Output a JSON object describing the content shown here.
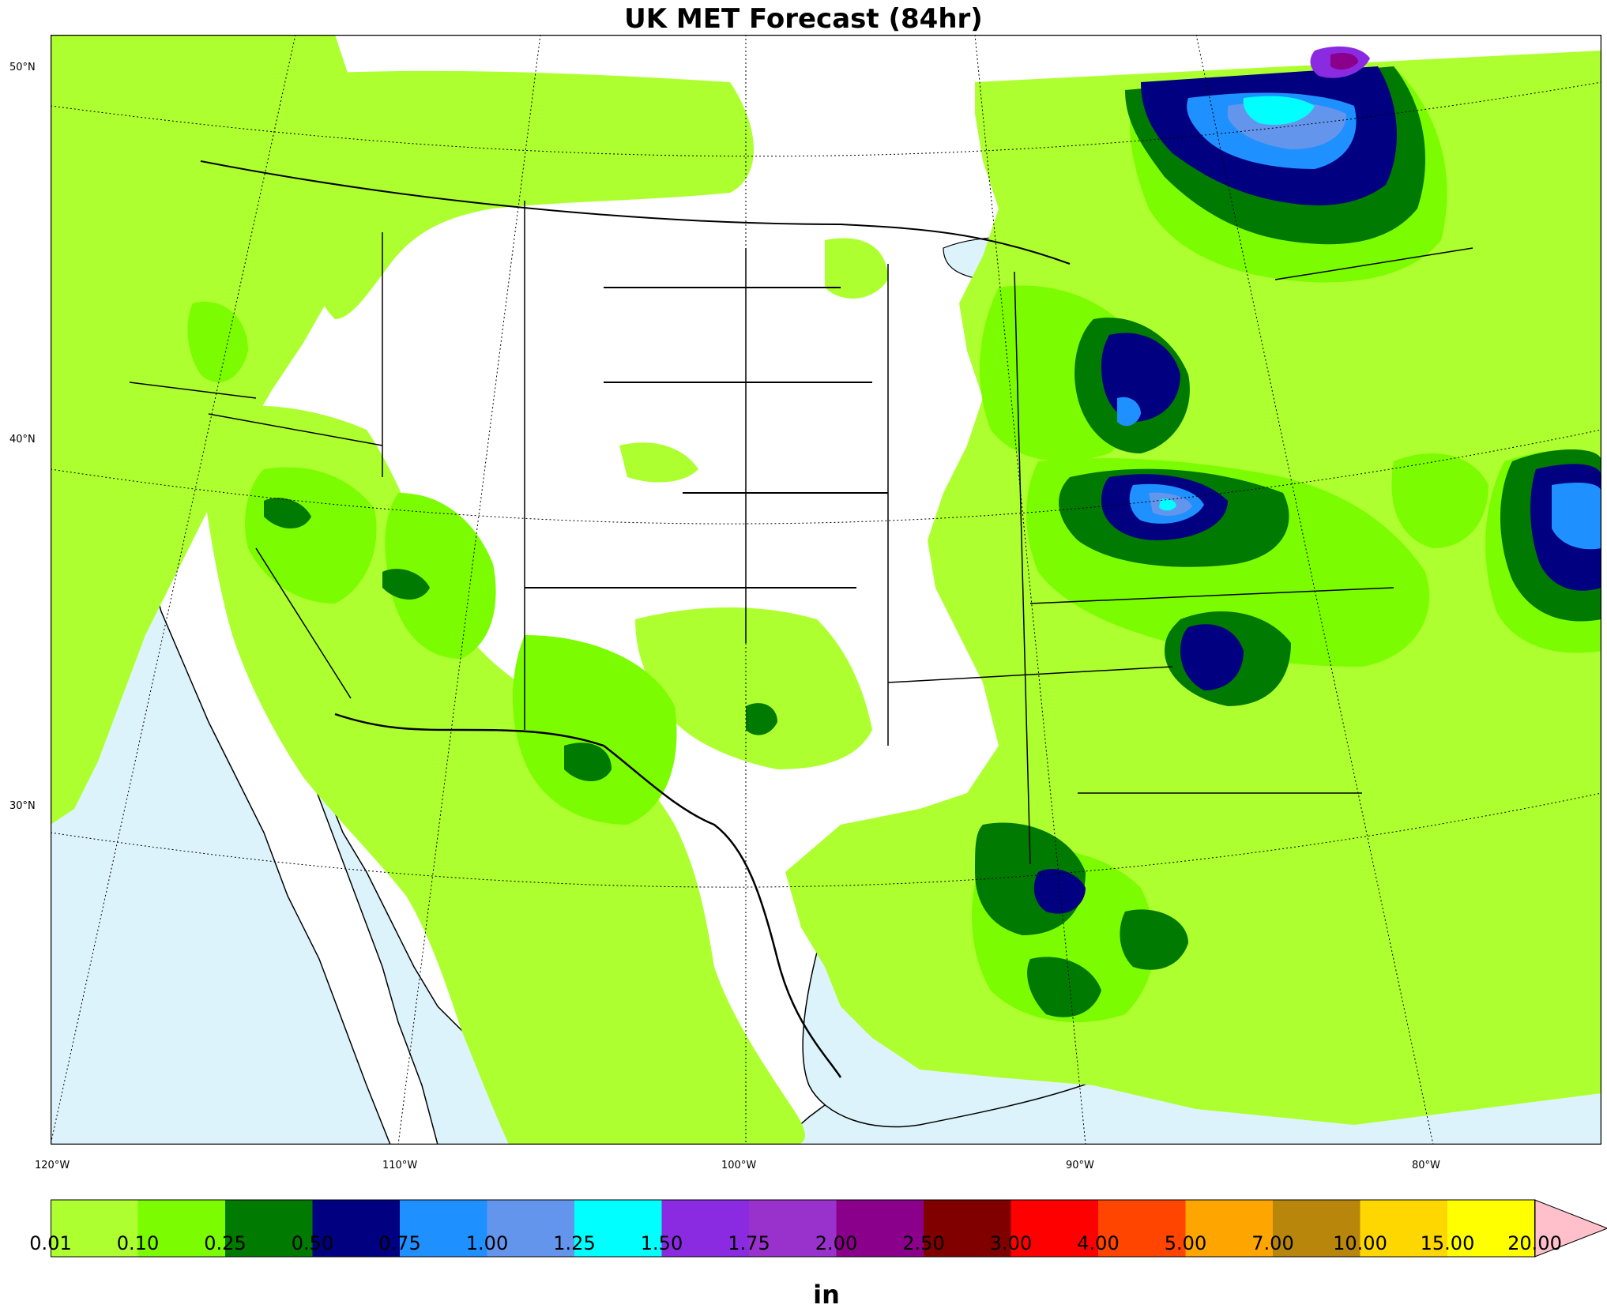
{
  "title": "UK MET Forecast (84hr)",
  "lat_labels": [
    "50°N",
    "40°N",
    "30°N"
  ],
  "lon_labels": [
    "120°W",
    "110°W",
    "100°W",
    "90°W",
    "80°W"
  ],
  "colorbar": {
    "unit": "in",
    "ticks": [
      "0.01",
      "0.10",
      "0.25",
      "0.50",
      "0.75",
      "1.00",
      "1.25",
      "1.50",
      "1.75",
      "2.00",
      "2.50",
      "3.00",
      "4.00",
      "5.00",
      "7.00",
      "10.00",
      "15.00",
      "20.00"
    ],
    "colors": [
      "#adff2f",
      "#7cfc00",
      "#007a00",
      "#000080",
      "#1e90ff",
      "#6495ed",
      "#00ffff",
      "#8a2be2",
      "#9932cc",
      "#8b008b",
      "#800000",
      "#ff0000",
      "#ff4500",
      "#ffa500",
      "#b8860b",
      "#ffd700",
      "#ffff00"
    ],
    "extend_color": "#ffc0cb"
  },
  "colors": {
    "water": "#dcf3fc",
    "land": "#ffffff"
  }
}
